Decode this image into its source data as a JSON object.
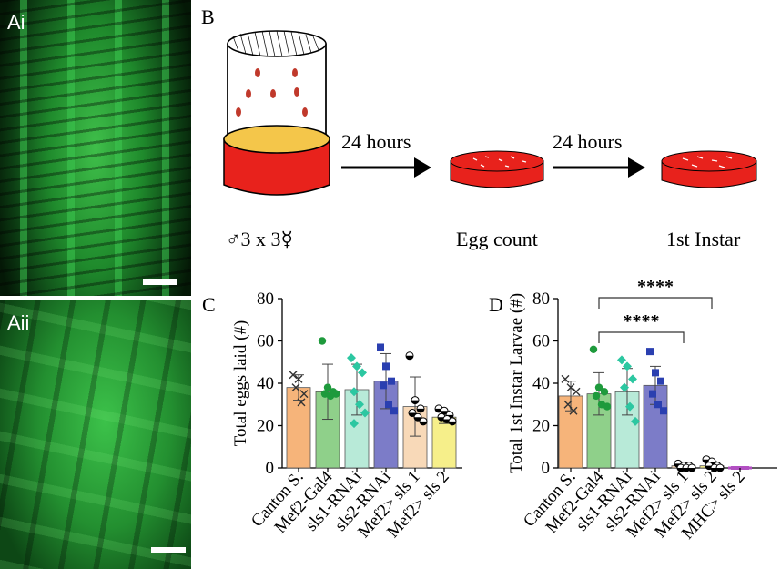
{
  "panels": {
    "ai_label": "Ai",
    "aii_label": "Aii",
    "b_label": "B",
    "c_label": "C",
    "d_label": "D"
  },
  "diagram": {
    "step1": "24 hours",
    "step2": "24 hours",
    "cross_label": "♂3 x 3☿",
    "egg_label": "Egg count",
    "instar_label": "1st Instar"
  },
  "colors": {
    "canton": "#f6b47a",
    "mef2gal4": "#8fd08a",
    "sls1rnai": "#b8ead8",
    "sls2rnai": "#7c7cc8",
    "mef2sls1": "#f8d9b8",
    "mef2sls2": "#f6ef8a",
    "mhcsls2": "#b24fc2",
    "dot_green": "#1e9a3c",
    "dot_teal": "#2cc7a1",
    "dot_blue": "#2a3fb0"
  },
  "chart_data": [
    {
      "type": "bar",
      "title": "",
      "xlabel": "",
      "ylabel": "Total eggs laid (#)",
      "ylim": [
        0,
        80
      ],
      "yticks": [
        "0",
        "20",
        "40",
        "60",
        "80"
      ],
      "categories": [
        "Canton S.",
        "Mef2-Gal4",
        "sls1-RNAi",
        "sls2-RNAi",
        "Mef2> sls 1",
        "Mef2> sls 2"
      ],
      "values": [
        38,
        36,
        37,
        41,
        29,
        24
      ],
      "error": [
        6,
        13,
        12,
        13,
        14,
        3
      ],
      "points": [
        [
          44,
          42,
          35,
          38,
          31
        ],
        [
          60,
          38,
          36,
          35,
          34,
          35
        ],
        [
          52,
          48,
          45,
          36,
          30,
          26,
          21
        ],
        [
          57,
          48,
          41,
          39,
          30,
          27
        ],
        [
          53,
          32,
          28,
          26,
          24,
          22
        ],
        [
          28,
          27,
          25,
          24,
          23,
          22
        ]
      ],
      "grid": false
    },
    {
      "type": "bar",
      "title": "",
      "xlabel": "",
      "ylabel": "Total 1st Instar Larvae (#)",
      "ylim": [
        0,
        80
      ],
      "yticks": [
        "0",
        "20",
        "40",
        "60",
        "80"
      ],
      "categories": [
        "Canton S.",
        "Mef2-Gal4",
        "sls1-RNAi",
        "sls2-RNAi",
        "Mef2> sls 1",
        "Mef2> sls 2",
        "MHC> sls 2"
      ],
      "values": [
        34,
        35,
        36,
        39,
        1,
        1,
        0
      ],
      "error": [
        7,
        10,
        11,
        9,
        1,
        2,
        0
      ],
      "points": [
        [
          42,
          38,
          36,
          30,
          27
        ],
        [
          56,
          38,
          36,
          34,
          30,
          29
        ],
        [
          51,
          48,
          42,
          38,
          29,
          22
        ],
        [
          55,
          45,
          41,
          35,
          30,
          27
        ],
        [
          2,
          1,
          1,
          0,
          0,
          0
        ],
        [
          4,
          3,
          1,
          1,
          0,
          0
        ],
        [
          0,
          0,
          0,
          0
        ]
      ],
      "significance": [
        {
          "from": 1,
          "to": 4,
          "label": "****"
        },
        {
          "from": 1,
          "to": 5,
          "label": "****"
        }
      ],
      "grid": false
    }
  ]
}
